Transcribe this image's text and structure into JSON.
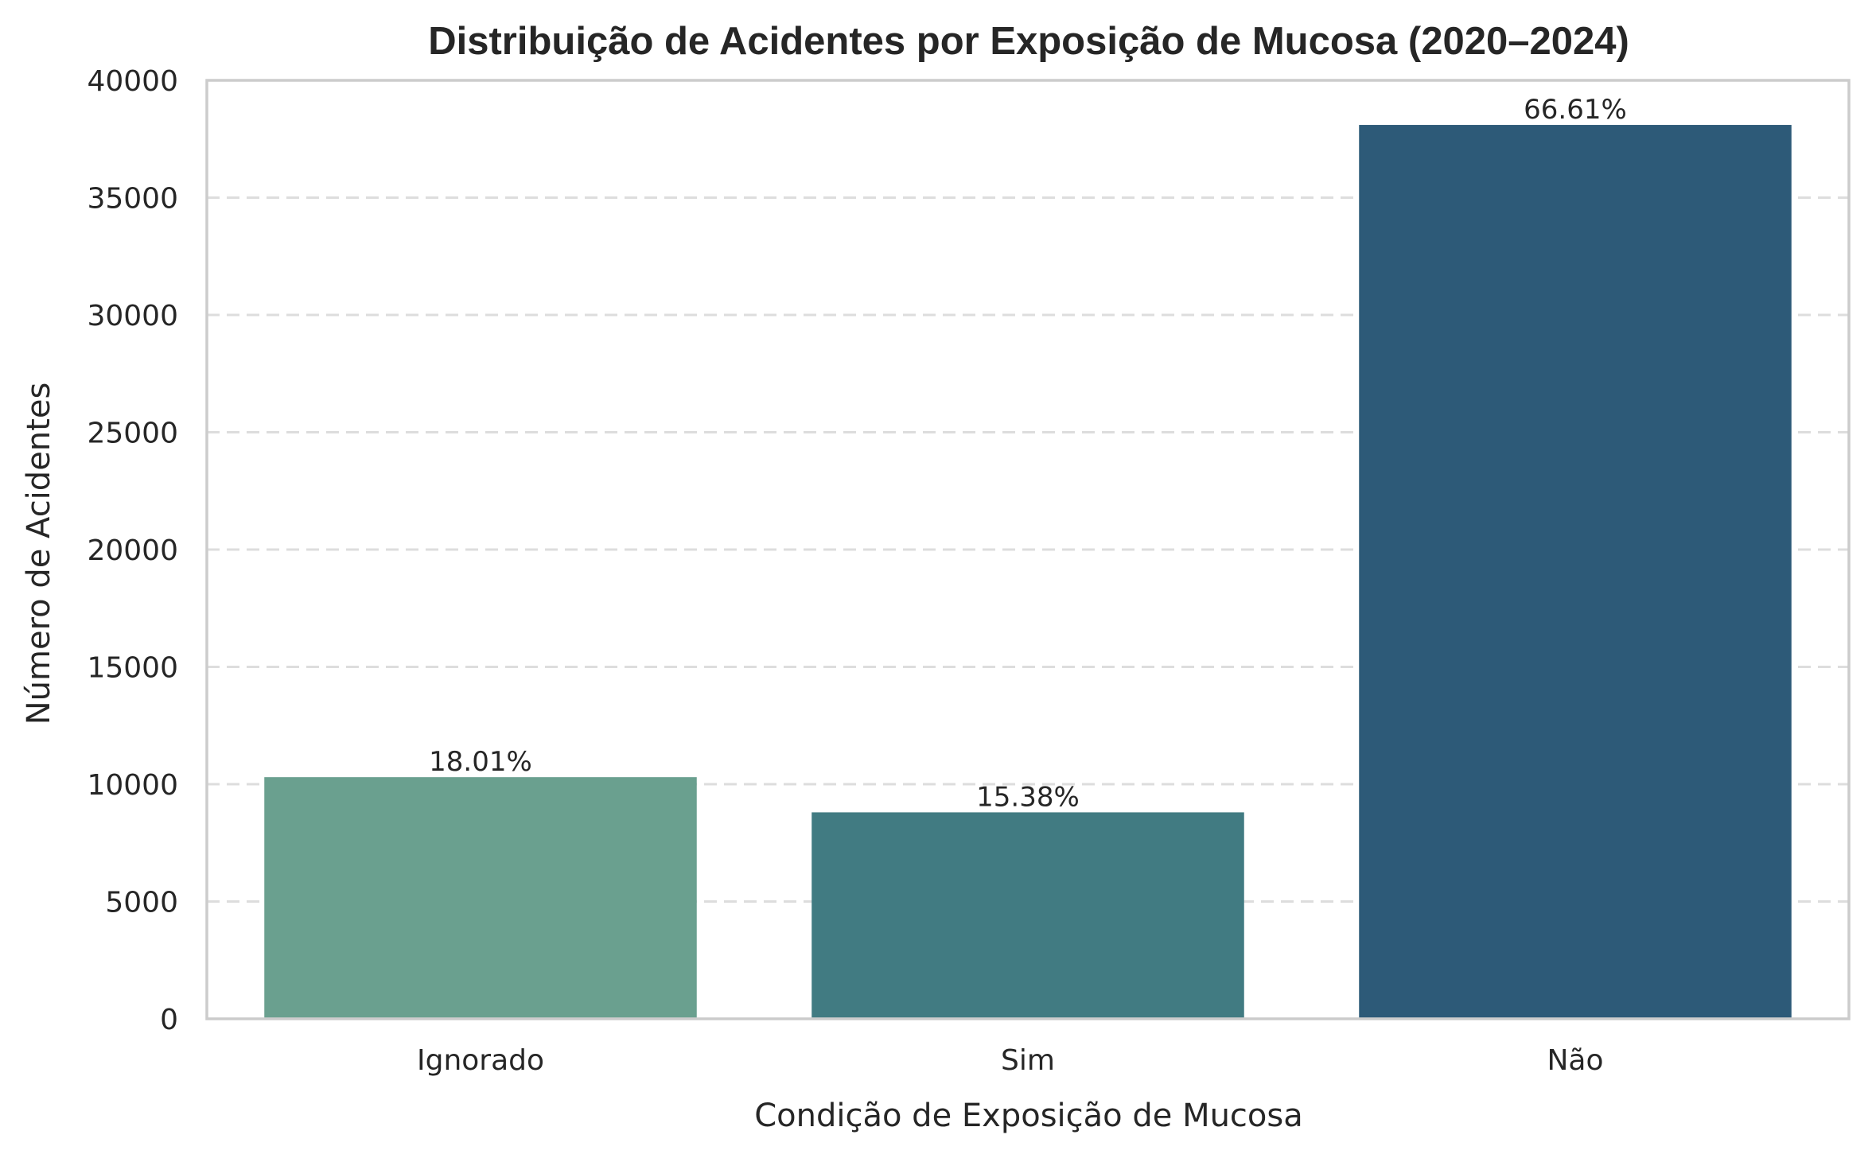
{
  "chart_data": {
    "type": "bar",
    "title": "Distribuição de Acidentes por Exposição de Mucosa (2020–2024)",
    "xlabel": "Condição de Exposição de Mucosa",
    "ylabel": "Número de Acidentes",
    "categories": [
      "Ignorado",
      "Sim",
      "Não"
    ],
    "values": [
      10300,
      8800,
      38100
    ],
    "data_labels": [
      "18.01%",
      "15.38%",
      "66.61%"
    ],
    "colors": [
      "#6aa08f",
      "#417b82",
      "#2d5a78"
    ],
    "ylim": [
      0,
      40000
    ],
    "yticks": [
      0,
      5000,
      10000,
      15000,
      20000,
      25000,
      30000,
      35000,
      40000
    ],
    "grid": "y, dashed",
    "legend": "none"
  }
}
